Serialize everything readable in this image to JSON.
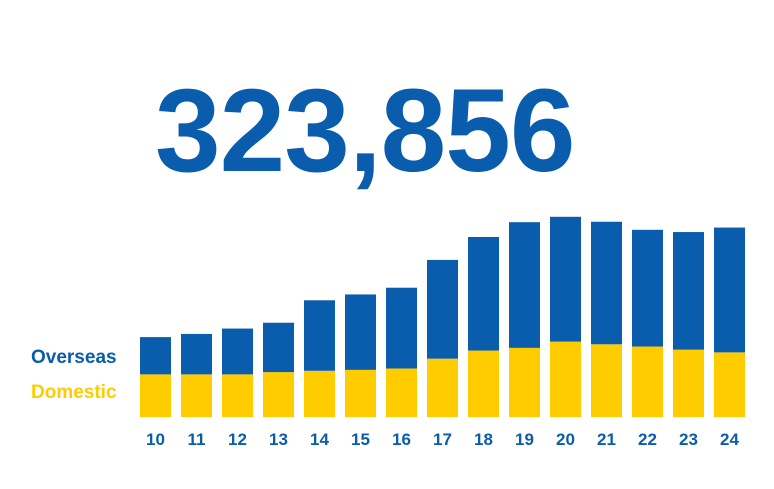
{
  "headline": {
    "value": "323,856"
  },
  "colors": {
    "overseas": "#0a5cad",
    "domestic": "#ffcc00",
    "text": "#0a5cad"
  },
  "chart_data": {
    "type": "bar",
    "stacked": true,
    "categories": [
      "10",
      "11",
      "12",
      "13",
      "14",
      "15",
      "16",
      "17",
      "18",
      "19",
      "20",
      "21",
      "22",
      "23",
      "24"
    ],
    "series": [
      {
        "name": "Domestic",
        "values": [
          95,
          95,
          95,
          100,
          103,
          105,
          108,
          130,
          148,
          154,
          168,
          162,
          157,
          150,
          144
        ]
      },
      {
        "name": "Overseas",
        "values": [
          83,
          90,
          102,
          110,
          157,
          168,
          180,
          220,
          253,
          280,
          278,
          273,
          260,
          262,
          278
        ]
      }
    ],
    "ylim": [
      0,
      450
    ],
    "legend_position": "left",
    "grid": false
  }
}
